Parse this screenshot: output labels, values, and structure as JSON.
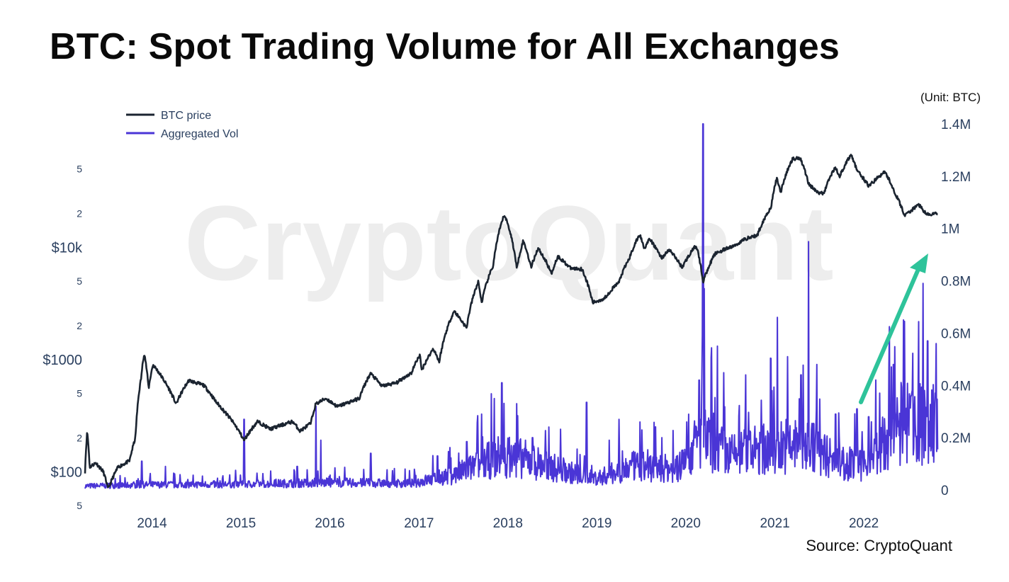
{
  "title": "BTC: Spot Trading Volume for All Exchanges",
  "unit_label": "(Unit: BTC)",
  "source_label": "Source: CryptoQuant",
  "watermark": "CryptoQuant",
  "colors": {
    "price": "#1b2430",
    "volume": "#4a35d6",
    "arrow": "#2ec39a"
  },
  "chart_data": {
    "type": "line",
    "xlim": [
      "2013-04-01",
      "2022-11-05"
    ],
    "x_ticks": [
      "2014",
      "2015",
      "2016",
      "2017",
      "2018",
      "2019",
      "2020",
      "2021",
      "2022"
    ],
    "y_left": {
      "scale": "log",
      "range": [
        50,
        90000
      ],
      "major_ticks": [
        {
          "value": 100,
          "label": "$100"
        },
        {
          "value": 1000,
          "label": "$1000"
        },
        {
          "value": 10000,
          "label": "$10k"
        }
      ],
      "minor_ticks": [
        {
          "value": 50,
          "label": "5"
        },
        {
          "value": 200,
          "label": "2"
        },
        {
          "value": 500,
          "label": "5"
        },
        {
          "value": 2000,
          "label": "2"
        },
        {
          "value": 5000,
          "label": "5"
        },
        {
          "value": 20000,
          "label": "2"
        },
        {
          "value": 50000,
          "label": "5"
        }
      ]
    },
    "y_right": {
      "scale": "linear",
      "range": [
        0,
        1400000
      ],
      "ticks": [
        {
          "value": 0,
          "label": "0"
        },
        {
          "value": 200000,
          "label": "0.2M"
        },
        {
          "value": 400000,
          "label": "0.4M"
        },
        {
          "value": 600000,
          "label": "0.6M"
        },
        {
          "value": 800000,
          "label": "0.8M"
        },
        {
          "value": 1000000,
          "label": "1M"
        },
        {
          "value": 1200000,
          "label": "1.2M"
        },
        {
          "value": 1400000,
          "label": "1.4M"
        }
      ]
    },
    "legend": {
      "position": "top-left",
      "entries": [
        "BTC price",
        "Aggregated Vol"
      ]
    },
    "series": [
      {
        "name": "BTC price",
        "axis": "left",
        "points": [
          [
            "2013-04-01",
            100
          ],
          [
            "2013-04-10",
            230
          ],
          [
            "2013-04-20",
            110
          ],
          [
            "2013-05-15",
            120
          ],
          [
            "2013-06-15",
            100
          ],
          [
            "2013-07-05",
            70
          ],
          [
            "2013-08-15",
            110
          ],
          [
            "2013-10-01",
            125
          ],
          [
            "2013-10-25",
            200
          ],
          [
            "2013-11-18",
            700
          ],
          [
            "2013-11-30",
            1150
          ],
          [
            "2013-12-18",
            550
          ],
          [
            "2014-01-05",
            900
          ],
          [
            "2014-02-10",
            700
          ],
          [
            "2014-03-01",
            600
          ],
          [
            "2014-04-10",
            400
          ],
          [
            "2014-06-01",
            650
          ],
          [
            "2014-08-01",
            590
          ],
          [
            "2014-09-20",
            420
          ],
          [
            "2014-11-01",
            330
          ],
          [
            "2015-01-14",
            190
          ],
          [
            "2015-03-10",
            280
          ],
          [
            "2015-05-01",
            240
          ],
          [
            "2015-08-01",
            280
          ],
          [
            "2015-09-01",
            230
          ],
          [
            "2015-10-15",
            270
          ],
          [
            "2015-11-04",
            400
          ],
          [
            "2015-12-15",
            450
          ],
          [
            "2016-02-01",
            380
          ],
          [
            "2016-05-01",
            450
          ],
          [
            "2016-06-16",
            750
          ],
          [
            "2016-08-01",
            580
          ],
          [
            "2016-10-01",
            620
          ],
          [
            "2016-12-01",
            760
          ],
          [
            "2017-01-04",
            1100
          ],
          [
            "2017-01-12",
            800
          ],
          [
            "2017-03-01",
            1250
          ],
          [
            "2017-03-25",
            950
          ],
          [
            "2017-05-25",
            2700
          ],
          [
            "2017-07-15",
            1900
          ],
          [
            "2017-09-01",
            4900
          ],
          [
            "2017-09-15",
            3200
          ],
          [
            "2017-11-01",
            6800
          ],
          [
            "2017-12-17",
            19500
          ],
          [
            "2018-01-05",
            15000
          ],
          [
            "2018-02-06",
            6500
          ],
          [
            "2018-03-05",
            11400
          ],
          [
            "2018-04-06",
            6600
          ],
          [
            "2018-05-05",
            9800
          ],
          [
            "2018-06-29",
            5800
          ],
          [
            "2018-07-25",
            8300
          ],
          [
            "2018-09-15",
            6500
          ],
          [
            "2018-11-01",
            6400
          ],
          [
            "2018-12-15",
            3200
          ],
          [
            "2019-02-01",
            3500
          ],
          [
            "2019-04-02",
            4900
          ],
          [
            "2019-05-15",
            8000
          ],
          [
            "2019-06-26",
            13000
          ],
          [
            "2019-07-15",
            9800
          ],
          [
            "2019-08-06",
            11800
          ],
          [
            "2019-09-24",
            8000
          ],
          [
            "2019-10-26",
            9500
          ],
          [
            "2019-12-17",
            6600
          ],
          [
            "2020-02-13",
            10400
          ],
          [
            "2020-03-12",
            4900
          ],
          [
            "2020-05-01",
            8800
          ],
          [
            "2020-07-26",
            10500
          ],
          [
            "2020-09-01",
            11900
          ],
          [
            "2020-10-21",
            12800
          ],
          [
            "2020-12-17",
            23000
          ],
          [
            "2021-01-08",
            41000
          ],
          [
            "2021-01-25",
            31000
          ],
          [
            "2021-03-14",
            61000
          ],
          [
            "2021-04-14",
            63000
          ],
          [
            "2021-05-19",
            37000
          ],
          [
            "2021-06-22",
            31000
          ],
          [
            "2021-07-20",
            30000
          ],
          [
            "2021-09-06",
            52000
          ],
          [
            "2021-09-22",
            42000
          ],
          [
            "2021-11-10",
            67000
          ],
          [
            "2021-12-04",
            48000
          ],
          [
            "2022-01-22",
            35000
          ],
          [
            "2022-03-28",
            47000
          ],
          [
            "2022-05-10",
            30000
          ],
          [
            "2022-06-18",
            19000
          ],
          [
            "2022-08-15",
            24000
          ],
          [
            "2022-09-15",
            19500
          ],
          [
            "2022-11-01",
            20000
          ]
        ]
      },
      {
        "name": "Aggregated Vol",
        "axis": "right",
        "baseline": [
          [
            "2013-04-01",
            15000
          ],
          [
            "2014-01-01",
            20000
          ],
          [
            "2015-01-01",
            22000
          ],
          [
            "2016-01-01",
            28000
          ],
          [
            "2016-12-01",
            25000
          ],
          [
            "2017-06-01",
            60000
          ],
          [
            "2017-12-01",
            130000
          ],
          [
            "2018-03-01",
            120000
          ],
          [
            "2018-09-01",
            70000
          ],
          [
            "2019-01-01",
            45000
          ],
          [
            "2019-06-01",
            90000
          ],
          [
            "2019-12-01",
            80000
          ],
          [
            "2020-03-01",
            200000
          ],
          [
            "2020-07-01",
            130000
          ],
          [
            "2021-02-01",
            170000
          ],
          [
            "2021-06-01",
            170000
          ],
          [
            "2021-09-01",
            110000
          ],
          [
            "2022-01-01",
            90000
          ],
          [
            "2022-06-01",
            250000
          ],
          [
            "2022-11-01",
            250000
          ]
        ],
        "spikes": [
          [
            "2013-11-20",
            110000
          ],
          [
            "2014-02-25",
            90000
          ],
          [
            "2014-12-10",
            75000
          ],
          [
            "2015-01-14",
            270000
          ],
          [
            "2015-08-20",
            90000
          ],
          [
            "2015-11-05",
            320000
          ],
          [
            "2015-11-25",
            190000
          ],
          [
            "2016-06-17",
            140000
          ],
          [
            "2017-03-18",
            130000
          ],
          [
            "2017-07-16",
            185000
          ],
          [
            "2017-09-15",
            290000
          ],
          [
            "2017-12-07",
            410000
          ],
          [
            "2018-02-06",
            330000
          ],
          [
            "2018-04-12",
            200000
          ],
          [
            "2018-11-20",
            335000
          ],
          [
            "2019-04-02",
            270000
          ],
          [
            "2019-06-27",
            260000
          ],
          [
            "2019-09-25",
            200000
          ],
          [
            "2020-01-05",
            260000
          ],
          [
            "2020-02-25",
            420000
          ],
          [
            "2020-03-12",
            1400000
          ],
          [
            "2020-03-17",
            770000
          ],
          [
            "2020-05-10",
            550000
          ],
          [
            "2020-09-03",
            440000
          ],
          [
            "2020-12-20",
            380000
          ],
          [
            "2021-01-11",
            660000
          ],
          [
            "2021-02-22",
            510000
          ],
          [
            "2021-04-18",
            440000
          ],
          [
            "2021-05-19",
            950000
          ],
          [
            "2021-06-22",
            480000
          ],
          [
            "2021-09-07",
            290000
          ],
          [
            "2021-12-04",
            310000
          ],
          [
            "2022-01-21",
            280000
          ],
          [
            "2022-05-10",
            300000
          ],
          [
            "2022-06-13",
            560000
          ],
          [
            "2022-07-14",
            360000
          ],
          [
            "2022-09-01",
            790000
          ],
          [
            "2022-09-20",
            570000
          ],
          [
            "2022-10-25",
            560000
          ]
        ]
      }
    ]
  }
}
